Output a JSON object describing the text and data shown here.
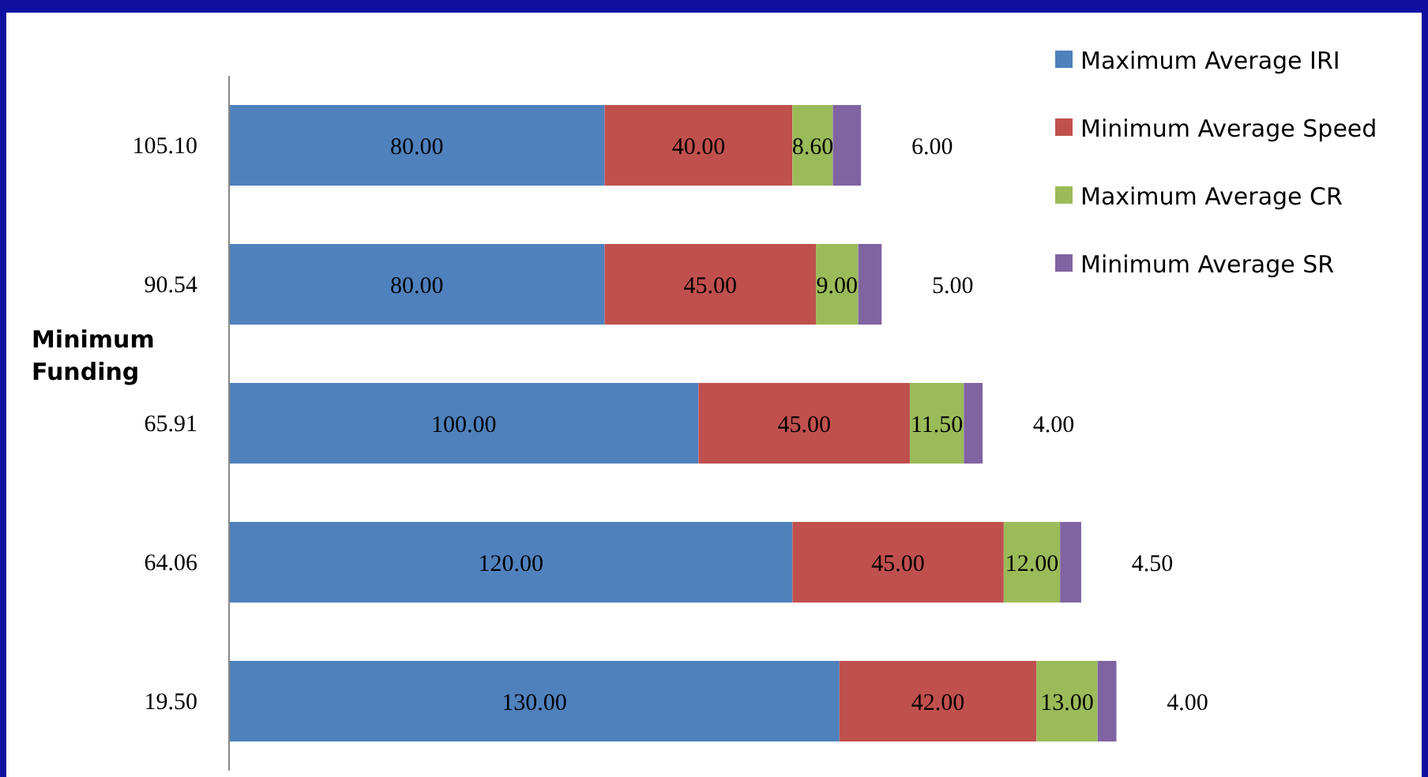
{
  "chart_data": {
    "type": "bar",
    "orientation": "horizontal",
    "stacked": true,
    "ylabel": "Minimum Funding",
    "categories": [
      "105.10",
      "90.54",
      "65.91",
      "64.06",
      "19.50"
    ],
    "series": [
      {
        "name": "Maximum Average IRI",
        "color": "#4f81bd",
        "values": [
          80,
          80,
          100,
          120,
          130
        ],
        "value_labels": [
          "80.00",
          "80.00",
          "100.00",
          "120.00",
          "130.00"
        ]
      },
      {
        "name": "Minimum Average Speed",
        "color": "#c0504d",
        "values": [
          40,
          45,
          45,
          45,
          42
        ],
        "value_labels": [
          "40.00",
          "45.00",
          "45.00",
          "45.00",
          "42.00"
        ]
      },
      {
        "name": "Maximum Average CR",
        "color": "#9bbb59",
        "values": [
          8.6,
          9,
          11.5,
          12,
          13
        ],
        "value_labels": [
          "8.60",
          "9.00",
          "11.50",
          "12.00",
          "13.00"
        ]
      },
      {
        "name": "Minimum  Average SR",
        "color": "#8064a2",
        "values": [
          6,
          5,
          4,
          4.5,
          4
        ],
        "value_labels": [
          "6.00",
          "5.00",
          "4.00",
          "4.50",
          "4.00"
        ]
      }
    ],
    "tick_labels": "y",
    "legend": "top right"
  }
}
